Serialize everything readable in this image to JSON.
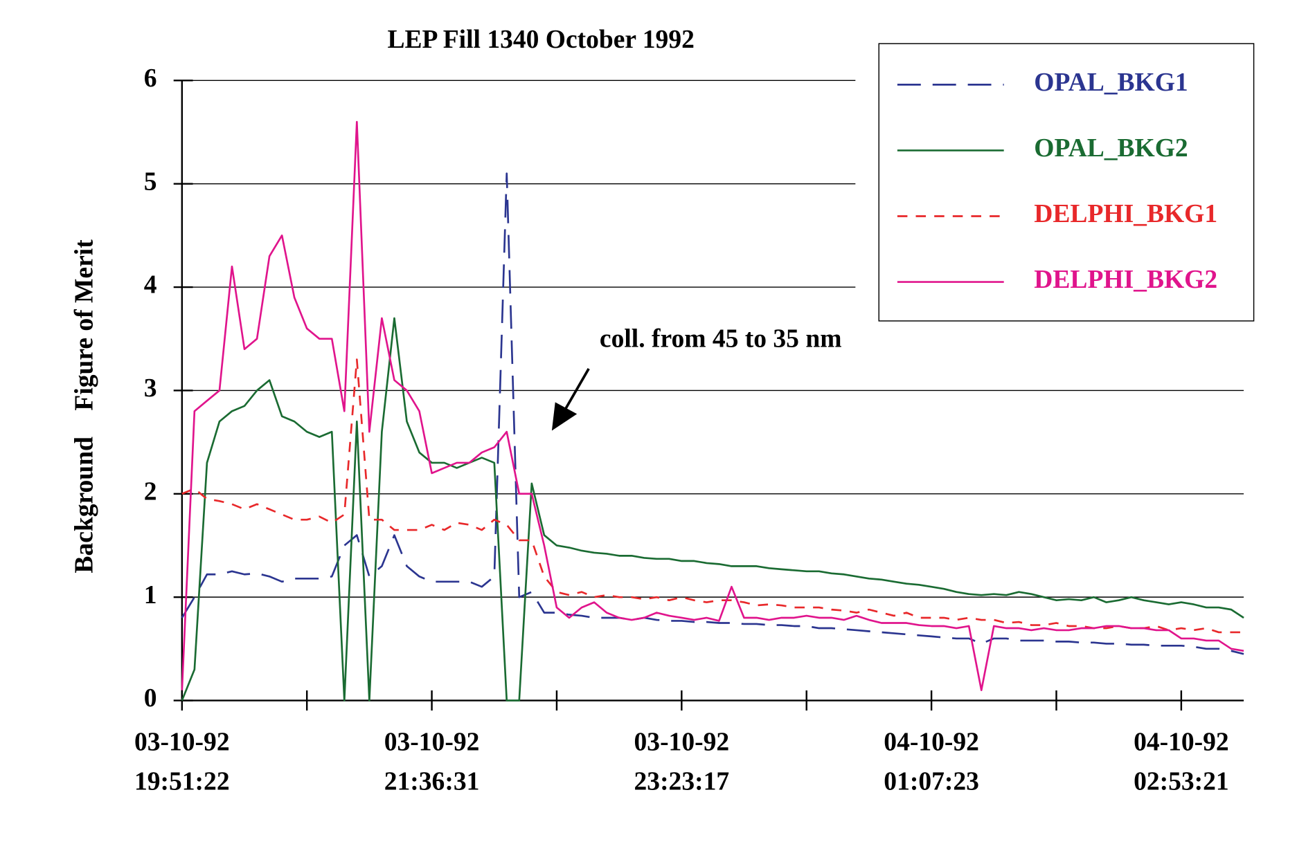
{
  "chart_data": {
    "type": "line",
    "title": "LEP Fill 1340 October 1992",
    "ylabel": "Background    Figure of Merit",
    "annotation": "coll. from 45 to 35 nm",
    "categories": [
      "03-10-92 19:51:22",
      null,
      null,
      null,
      null,
      null,
      null,
      null,
      null,
      null,
      null,
      null,
      null,
      null,
      null,
      null,
      null,
      null,
      null,
      null,
      "03-10-92 21:36:31",
      null,
      null,
      null,
      null,
      null,
      null,
      null,
      null,
      null,
      null,
      null,
      null,
      null,
      null,
      null,
      null,
      null,
      null,
      null,
      "03-10-92 23:23:17",
      null,
      null,
      null,
      null,
      null,
      null,
      null,
      null,
      null,
      null,
      null,
      null,
      null,
      null,
      null,
      null,
      null,
      null,
      null,
      "04-10-92 01:07:23",
      null,
      null,
      null,
      null,
      null,
      null,
      null,
      null,
      null,
      null,
      null,
      null,
      null,
      null,
      null,
      null,
      null,
      null,
      null,
      "04-10-92 02:53:21",
      null,
      null,
      null,
      null,
      null
    ],
    "ylim": [
      0,
      6
    ],
    "yticks": [
      0,
      1,
      2,
      3,
      4,
      5,
      6
    ],
    "grid": true,
    "legend": "upper right",
    "series": [
      {
        "name": "OPAL_BKG1",
        "color": "#2b3590",
        "dash": "28 14",
        "values": [
          0.8,
          1.0,
          1.22,
          1.22,
          1.25,
          1.22,
          1.23,
          1.2,
          1.15,
          1.18,
          1.18,
          1.18,
          1.2,
          1.5,
          1.6,
          1.2,
          1.3,
          1.6,
          1.3,
          1.2,
          1.15,
          1.15,
          1.15,
          1.15,
          1.1,
          1.2,
          5.1,
          1.0,
          1.05,
          0.85,
          0.85,
          0.83,
          0.82,
          0.8,
          0.8,
          0.8,
          0.78,
          0.8,
          0.78,
          0.77,
          0.77,
          0.76,
          0.76,
          0.75,
          0.75,
          0.74,
          0.74,
          0.73,
          0.73,
          0.72,
          0.72,
          0.7,
          0.7,
          0.69,
          0.68,
          0.67,
          0.66,
          0.65,
          0.64,
          0.63,
          0.62,
          0.61,
          0.6,
          0.6,
          0.55,
          0.6,
          0.6,
          0.58,
          0.58,
          0.58,
          0.57,
          0.57,
          0.56,
          0.56,
          0.55,
          0.55,
          0.54,
          0.54,
          0.53,
          0.53,
          0.53,
          0.52,
          0.5,
          0.5,
          0.48,
          0.45
        ]
      },
      {
        "name": "OPAL_BKG2",
        "color": "#1a6b32",
        "values": [
          0,
          0.3,
          2.3,
          2.7,
          2.8,
          2.85,
          3.0,
          3.1,
          2.75,
          2.7,
          2.6,
          2.55,
          2.6,
          0,
          2.7,
          0,
          2.6,
          3.7,
          2.7,
          2.4,
          2.3,
          2.3,
          2.25,
          2.3,
          2.35,
          2.3,
          0,
          0,
          2.1,
          1.6,
          1.5,
          1.48,
          1.45,
          1.43,
          1.42,
          1.4,
          1.4,
          1.38,
          1.37,
          1.37,
          1.35,
          1.35,
          1.33,
          1.32,
          1.3,
          1.3,
          1.3,
          1.28,
          1.27,
          1.26,
          1.25,
          1.25,
          1.23,
          1.22,
          1.2,
          1.18,
          1.17,
          1.15,
          1.13,
          1.12,
          1.1,
          1.08,
          1.05,
          1.03,
          1.02,
          1.03,
          1.02,
          1.05,
          1.03,
          1.0,
          0.97,
          0.98,
          0.97,
          1.0,
          0.95,
          0.97,
          1.0,
          0.97,
          0.95,
          0.93,
          0.95,
          0.93,
          0.9,
          0.9,
          0.88,
          0.8
        ]
      },
      {
        "name": "DELPHI_BKG1",
        "color": "#e8282a",
        "dash": "12 10",
        "values": [
          2.0,
          2.05,
          1.95,
          1.93,
          1.9,
          1.85,
          1.9,
          1.85,
          1.8,
          1.75,
          1.75,
          1.78,
          1.72,
          1.8,
          3.3,
          1.75,
          1.75,
          1.65,
          1.65,
          1.65,
          1.7,
          1.65,
          1.72,
          1.7,
          1.65,
          1.75,
          1.7,
          1.55,
          1.55,
          1.2,
          1.05,
          1.02,
          1.05,
          1.0,
          1.02,
          1.0,
          1.0,
          0.98,
          1.0,
          0.97,
          1.0,
          0.97,
          0.95,
          0.97,
          0.97,
          0.95,
          0.92,
          0.93,
          0.92,
          0.9,
          0.9,
          0.9,
          0.88,
          0.87,
          0.85,
          0.88,
          0.85,
          0.82,
          0.85,
          0.8,
          0.8,
          0.8,
          0.78,
          0.8,
          0.78,
          0.78,
          0.75,
          0.76,
          0.73,
          0.73,
          0.75,
          0.72,
          0.72,
          0.7,
          0.7,
          0.72,
          0.7,
          0.7,
          0.72,
          0.68,
          0.7,
          0.68,
          0.7,
          0.66,
          0.66,
          0.66
        ]
      },
      {
        "name": "DELPHI_BKG2",
        "color": "#e0148c",
        "values": [
          0.1,
          2.8,
          2.9,
          3.0,
          4.2,
          3.4,
          3.5,
          4.3,
          4.5,
          3.9,
          3.6,
          3.5,
          3.5,
          2.8,
          5.6,
          2.6,
          3.7,
          3.1,
          3.0,
          2.8,
          2.2,
          2.25,
          2.3,
          2.3,
          2.4,
          2.45,
          2.6,
          2.0,
          2.0,
          1.5,
          0.9,
          0.8,
          0.9,
          0.95,
          0.85,
          0.8,
          0.78,
          0.8,
          0.85,
          0.82,
          0.8,
          0.78,
          0.8,
          0.77,
          1.1,
          0.8,
          0.8,
          0.78,
          0.8,
          0.8,
          0.82,
          0.8,
          0.8,
          0.78,
          0.82,
          0.78,
          0.75,
          0.75,
          0.75,
          0.73,
          0.72,
          0.72,
          0.7,
          0.72,
          0.1,
          0.72,
          0.7,
          0.7,
          0.68,
          0.7,
          0.68,
          0.68,
          0.7,
          0.7,
          0.72,
          0.72,
          0.7,
          0.7,
          0.68,
          0.68,
          0.6,
          0.6,
          0.58,
          0.58,
          0.5,
          0.48
        ]
      }
    ]
  }
}
